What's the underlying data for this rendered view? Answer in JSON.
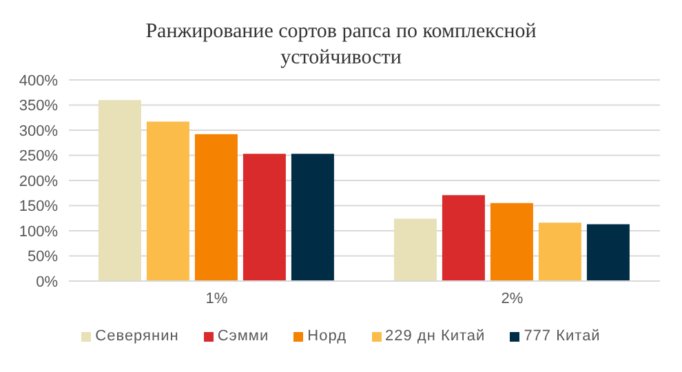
{
  "chart_data": {
    "type": "bar",
    "title": "Ранжирование сортов рапса по комплексной устойчивости",
    "categories": [
      "1%",
      "2%"
    ],
    "series": [
      {
        "name": "Северянин",
        "color": "#e8e0b6",
        "values": [
          360,
          124
        ]
      },
      {
        "name": "Сэмми",
        "color": "#d92b2b",
        "colors": [
          "#fbbc4a",
          "#d92b2b"
        ],
        "values": [
          317,
          171
        ]
      },
      {
        "name": "Норд",
        "color": "#f58200",
        "values": [
          292,
          155
        ]
      },
      {
        "name": "229 дн Китай",
        "color": "#fbbc4a",
        "colors": [
          "#d92b2b",
          "#fbbc4a"
        ],
        "values": [
          253,
          116
        ]
      },
      {
        "name": "777 Китай",
        "color": "#002d45",
        "values": [
          253,
          113
        ]
      }
    ],
    "ylim": [
      0,
      400
    ],
    "yticks": [
      {
        "value": 0,
        "label": "0%"
      },
      {
        "value": 50,
        "label": "50%"
      },
      {
        "value": 100,
        "label": "100%"
      },
      {
        "value": 150,
        "label": "150%"
      },
      {
        "value": 200,
        "label": "200%"
      },
      {
        "value": 250,
        "label": "250%"
      },
      {
        "value": 300,
        "label": "300%"
      },
      {
        "value": 350,
        "label": "350%"
      },
      {
        "value": 400,
        "label": "400%"
      }
    ],
    "grid": "y",
    "legend": "bottom"
  }
}
